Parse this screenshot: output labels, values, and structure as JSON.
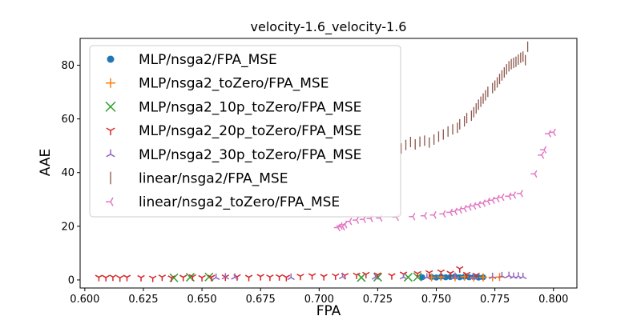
{
  "chart_data": {
    "type": "scatter",
    "title": "velocity-1.6_velocity-1.6",
    "xlabel": "FPA",
    "ylabel": "AAE",
    "xlim": [
      0.598,
      0.81
    ],
    "ylim": [
      -3,
      90
    ],
    "xticks": [
      "0.600",
      "0.625",
      "0.650",
      "0.675",
      "0.700",
      "0.725",
      "0.750",
      "0.775",
      "0.800"
    ],
    "yticks": [
      "0",
      "20",
      "40",
      "60",
      "80"
    ],
    "grid": false,
    "legend_position": "top-left",
    "series": [
      {
        "name": "MLP/nsga2/FPA_MSE",
        "color": "#1f77b4",
        "marker": "circle",
        "points": [
          [
            0.744,
            1.0
          ],
          [
            0.748,
            1.1
          ],
          [
            0.75,
            0.9
          ],
          [
            0.752,
            1.2
          ],
          [
            0.754,
            1.0
          ],
          [
            0.756,
            1.1
          ],
          [
            0.758,
            1.3
          ],
          [
            0.76,
            1.0
          ],
          [
            0.762,
            1.2
          ],
          [
            0.764,
            1.0
          ],
          [
            0.766,
            1.1
          ],
          [
            0.768,
            0.9
          ],
          [
            0.77,
            1.0
          ]
        ]
      },
      {
        "name": "MLP/nsga2_toZero/FPA_MSE",
        "color": "#ff7f0e",
        "marker": "plus",
        "points": [
          [
            0.748,
            1.0
          ],
          [
            0.752,
            1.1
          ],
          [
            0.758,
            1.0
          ],
          [
            0.762,
            1.2
          ],
          [
            0.766,
            0.9
          ],
          [
            0.77,
            1.0
          ],
          [
            0.774,
            1.0
          ],
          [
            0.777,
            1.1
          ]
        ]
      },
      {
        "name": "MLP/nsga2_10p_toZero/FPA_MSE",
        "color": "#2ca02c",
        "marker": "x",
        "points": [
          [
            0.638,
            0.8
          ],
          [
            0.645,
            1.0
          ],
          [
            0.653,
            1.1
          ],
          [
            0.718,
            0.9
          ],
          [
            0.725,
            1.0
          ],
          [
            0.738,
            1.0
          ],
          [
            0.742,
            1.1
          ]
        ]
      },
      {
        "name": "MLP/nsga2_20p_toZero/FPA_MSE",
        "color": "#d62728",
        "marker": "tri_down",
        "points": [
          [
            0.606,
            1.0
          ],
          [
            0.609,
            0.9
          ],
          [
            0.612,
            1.1
          ],
          [
            0.615,
            0.8
          ],
          [
            0.618,
            1.0
          ],
          [
            0.624,
            0.9
          ],
          [
            0.629,
            0.7
          ],
          [
            0.633,
            1.1
          ],
          [
            0.637,
            0.8
          ],
          [
            0.642,
            1.0
          ],
          [
            0.646,
            1.2
          ],
          [
            0.65,
            0.9
          ],
          [
            0.654,
            1.0
          ],
          [
            0.66,
            1.1
          ],
          [
            0.665,
            1.2
          ],
          [
            0.67,
            1.0
          ],
          [
            0.675,
            1.3
          ],
          [
            0.679,
            1.1
          ],
          [
            0.683,
            1.2
          ],
          [
            0.686,
            1.0
          ],
          [
            0.692,
            1.4
          ],
          [
            0.697,
            1.6
          ],
          [
            0.702,
            1.3
          ],
          [
            0.707,
            1.5
          ],
          [
            0.711,
            1.7
          ],
          [
            0.716,
            1.8
          ],
          [
            0.72,
            2.1
          ],
          [
            0.725,
            1.9
          ],
          [
            0.731,
            1.6
          ],
          [
            0.736,
            2.2
          ],
          [
            0.742,
            2.4
          ],
          [
            0.747,
            2.7
          ],
          [
            0.752,
            3.0
          ],
          [
            0.756,
            2.5
          ],
          [
            0.76,
            4.2
          ],
          [
            0.763,
            2.1
          ],
          [
            0.767,
            1.8
          ]
        ]
      },
      {
        "name": "MLP/nsga2_30p_toZero/FPA_MSE",
        "color": "#9467bd",
        "marker": "tri_up",
        "points": [
          [
            0.656,
            0.9
          ],
          [
            0.66,
            1.1
          ],
          [
            0.664,
            1.0
          ],
          [
            0.688,
            0.9
          ],
          [
            0.71,
            1.2
          ],
          [
            0.724,
            1.0
          ],
          [
            0.736,
            1.1
          ],
          [
            0.746,
            1.0
          ],
          [
            0.758,
            1.3
          ],
          [
            0.766,
            1.0
          ],
          [
            0.774,
            1.2
          ],
          [
            0.778,
            1.5
          ],
          [
            0.781,
            1.6
          ],
          [
            0.783,
            1.3
          ],
          [
            0.785,
            1.4
          ],
          [
            0.787,
            1.2
          ]
        ]
      },
      {
        "name": "linear/nsga2/FPA_MSE",
        "color": "#8c564b",
        "marker": "vline",
        "points": [
          [
            0.735,
            49.0
          ],
          [
            0.737,
            50.3
          ],
          [
            0.739,
            51.4
          ],
          [
            0.741,
            50.5
          ],
          [
            0.743,
            51.5
          ],
          [
            0.745,
            51.9
          ],
          [
            0.747,
            51.2
          ],
          [
            0.749,
            52.3
          ],
          [
            0.751,
            53.4
          ],
          [
            0.753,
            54.2
          ],
          [
            0.755,
            55.3
          ],
          [
            0.757,
            56.1
          ],
          [
            0.759,
            56.7
          ],
          [
            0.76,
            58.0
          ],
          [
            0.762,
            59.1
          ],
          [
            0.763,
            60.3
          ],
          [
            0.765,
            61.2
          ],
          [
            0.766,
            62.5
          ],
          [
            0.767,
            63.9
          ],
          [
            0.768,
            65.3
          ],
          [
            0.769,
            66.4
          ],
          [
            0.77,
            67.6
          ],
          [
            0.771,
            68.8
          ],
          [
            0.772,
            70.1
          ],
          [
            0.774,
            71.5
          ],
          [
            0.775,
            72.4
          ],
          [
            0.776,
            73.6
          ],
          [
            0.777,
            74.9
          ],
          [
            0.778,
            76.2
          ],
          [
            0.779,
            77.3
          ],
          [
            0.78,
            78.5
          ],
          [
            0.781,
            79.6
          ],
          [
            0.782,
            80.4
          ],
          [
            0.783,
            80.9
          ],
          [
            0.784,
            81.3
          ],
          [
            0.785,
            82.1
          ],
          [
            0.786,
            82.8
          ],
          [
            0.787,
            83.2
          ],
          [
            0.788,
            81.9
          ],
          [
            0.789,
            86.9
          ]
        ]
      },
      {
        "name": "linear/nsga2_toZero/FPA_MSE",
        "color": "#e377c2",
        "marker": "tri_left",
        "points": [
          [
            0.708,
            19.5
          ],
          [
            0.709,
            20.1
          ],
          [
            0.71,
            19.8
          ],
          [
            0.711,
            20.6
          ],
          [
            0.713,
            21.8
          ],
          [
            0.716,
            22.3
          ],
          [
            0.719,
            22.6
          ],
          [
            0.722,
            22.9
          ],
          [
            0.726,
            23.1
          ],
          [
            0.733,
            23.4
          ],
          [
            0.74,
            23.6
          ],
          [
            0.745,
            23.9
          ],
          [
            0.749,
            24.2
          ],
          [
            0.753,
            24.6
          ],
          [
            0.756,
            25.2
          ],
          [
            0.758,
            25.5
          ],
          [
            0.76,
            26.1
          ],
          [
            0.762,
            26.6
          ],
          [
            0.764,
            27.2
          ],
          [
            0.766,
            27.6
          ],
          [
            0.768,
            28.1
          ],
          [
            0.77,
            28.6
          ],
          [
            0.772,
            29.3
          ],
          [
            0.774,
            29.7
          ],
          [
            0.776,
            30.3
          ],
          [
            0.778,
            30.8
          ],
          [
            0.781,
            31.2
          ],
          [
            0.783,
            31.6
          ],
          [
            0.786,
            32.2
          ],
          [
            0.792,
            39.5
          ],
          [
            0.795,
            46.5
          ],
          [
            0.796,
            48.5
          ],
          [
            0.798,
            54.5
          ],
          [
            0.8,
            55.0
          ]
        ]
      }
    ]
  }
}
